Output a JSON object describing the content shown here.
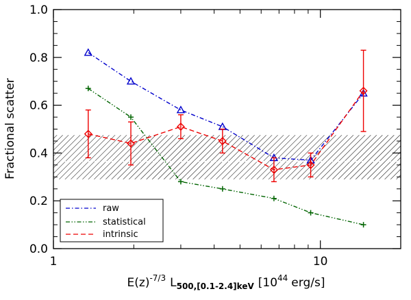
{
  "chart_data": {
    "type": "line",
    "title": "",
    "xlabel": {
      "prefix": "E(z)",
      "prefix_exp": "-7/3",
      "symbol": "L",
      "symbol_sub": "500,[0.1-2.4]keV",
      "unit_open": "[10",
      "unit_exp": "44",
      "unit_close": "erg/s]"
    },
    "ylabel": "Fractional scatter",
    "xscale": "log",
    "xlim": [
      1,
      20
    ],
    "ylim": [
      0.0,
      1.0
    ],
    "x_major_ticks": [
      1,
      10
    ],
    "x_tick_labels": [
      "1",
      "10"
    ],
    "y_major_ticks": [
      0.0,
      0.2,
      0.4,
      0.6,
      0.8,
      1.0
    ],
    "y_tick_labels": [
      "0.0",
      "0.2",
      "0.4",
      "0.6",
      "0.8",
      "1.0"
    ],
    "x": [
      1.35,
      1.95,
      3.0,
      4.3,
      6.7,
      9.2,
      14.5
    ],
    "series": [
      {
        "name": "raw",
        "color": "#0000cc",
        "linestyle": "dash-dot",
        "marker": "triangle",
        "values": [
          0.82,
          0.7,
          0.58,
          0.51,
          0.38,
          0.37,
          0.65
        ]
      },
      {
        "name": "statistical",
        "color": "#006400",
        "linestyle": "dash-dot-dot",
        "marker": "plus",
        "values": [
          0.67,
          0.55,
          0.28,
          0.25,
          0.21,
          0.15,
          0.1
        ]
      },
      {
        "name": "intrinsic",
        "color": "#ee0000",
        "linestyle": "dashed",
        "marker": "diamond",
        "values": [
          0.48,
          0.44,
          0.51,
          0.45,
          0.33,
          0.35,
          0.66
        ],
        "err_low": [
          0.1,
          0.09,
          0.05,
          0.05,
          0.05,
          0.05,
          0.17
        ],
        "err_high": [
          0.1,
          0.09,
          0.05,
          0.05,
          0.05,
          0.05,
          0.17
        ]
      }
    ],
    "band": {
      "low": 0.29,
      "high": 0.475,
      "center": 0.365,
      "fill": "hatched"
    },
    "legend": {
      "location": "bottom-left",
      "entries": [
        "raw",
        "statistical",
        "intrinsic"
      ]
    }
  }
}
